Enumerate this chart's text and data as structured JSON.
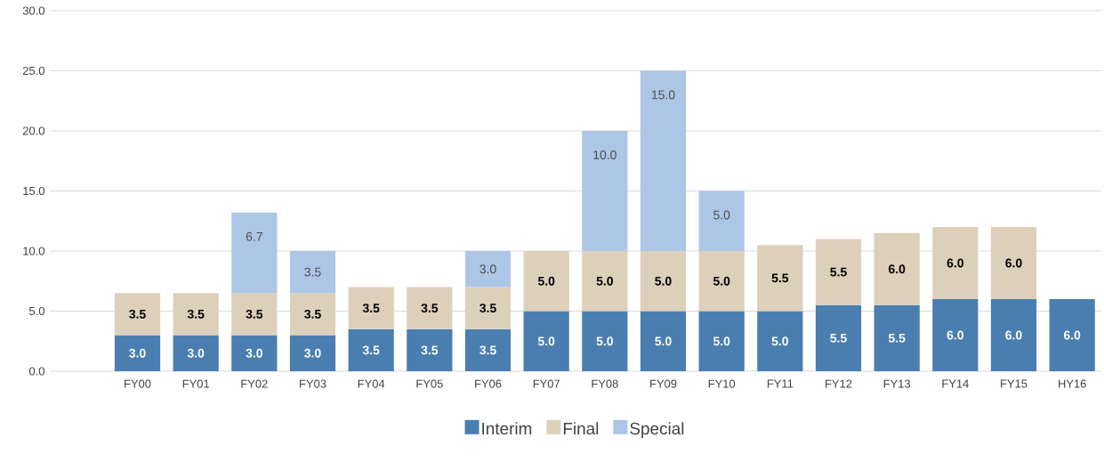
{
  "chart_data": {
    "type": "bar",
    "stacked": true,
    "categories": [
      "FY00",
      "FY01",
      "FY02",
      "FY03",
      "FY04",
      "FY05",
      "FY06",
      "FY07",
      "FY08",
      "FY09",
      "FY10",
      "FY11",
      "FY12",
      "FY13",
      "FY14",
      "FY15",
      "HY16"
    ],
    "series": [
      {
        "name": "Interim",
        "color": "#4a7eb0",
        "values": [
          3.0,
          3.0,
          3.0,
          3.0,
          3.5,
          3.5,
          3.5,
          5.0,
          5.0,
          5.0,
          5.0,
          5.0,
          5.5,
          5.5,
          6.0,
          6.0,
          6.0
        ],
        "value_labels": [
          "3.0",
          "3.0",
          "3.0",
          "3.0",
          "3.5",
          "3.5",
          "3.5",
          "5.0",
          "5.0",
          "5.0",
          "5.0",
          "5.0",
          "5.5",
          "5.5",
          "6.0",
          "6.0",
          "6.0"
        ]
      },
      {
        "name": "Final",
        "color": "#ddd0bb",
        "values": [
          3.5,
          3.5,
          3.5,
          3.5,
          3.5,
          3.5,
          3.5,
          5.0,
          5.0,
          5.0,
          5.0,
          5.5,
          5.5,
          6.0,
          6.0,
          6.0,
          null
        ],
        "value_labels": [
          "3.5",
          "3.5",
          "3.5",
          "3.5",
          "3.5",
          "3.5",
          "3.5",
          "5.0",
          "5.0",
          "5.0",
          "5.0",
          "5.5",
          "5.5",
          "6.0",
          "6.0",
          "6.0",
          null
        ]
      },
      {
        "name": "Special",
        "color": "#adc6e5",
        "values": [
          null,
          null,
          6.7,
          3.5,
          null,
          null,
          3.0,
          null,
          10.0,
          15.0,
          5.0,
          null,
          null,
          null,
          null,
          null,
          null
        ],
        "value_labels": [
          null,
          null,
          "6.7",
          "3.5",
          null,
          null,
          "3.0",
          null,
          "10.0",
          "15.0",
          "5.0",
          null,
          null,
          null,
          null,
          null,
          null
        ]
      }
    ],
    "ylim": [
      0,
      30
    ],
    "yticks": [
      {
        "value": 0,
        "label": "0.0"
      },
      {
        "value": 5,
        "label": "5.0"
      },
      {
        "value": 10,
        "label": "10.0"
      },
      {
        "value": 15,
        "label": "15.0"
      },
      {
        "value": 20,
        "label": "20.0"
      },
      {
        "value": 25,
        "label": "25.0"
      },
      {
        "value": 30,
        "label": "30.0"
      }
    ],
    "grid": "y",
    "legend": "bottom"
  }
}
